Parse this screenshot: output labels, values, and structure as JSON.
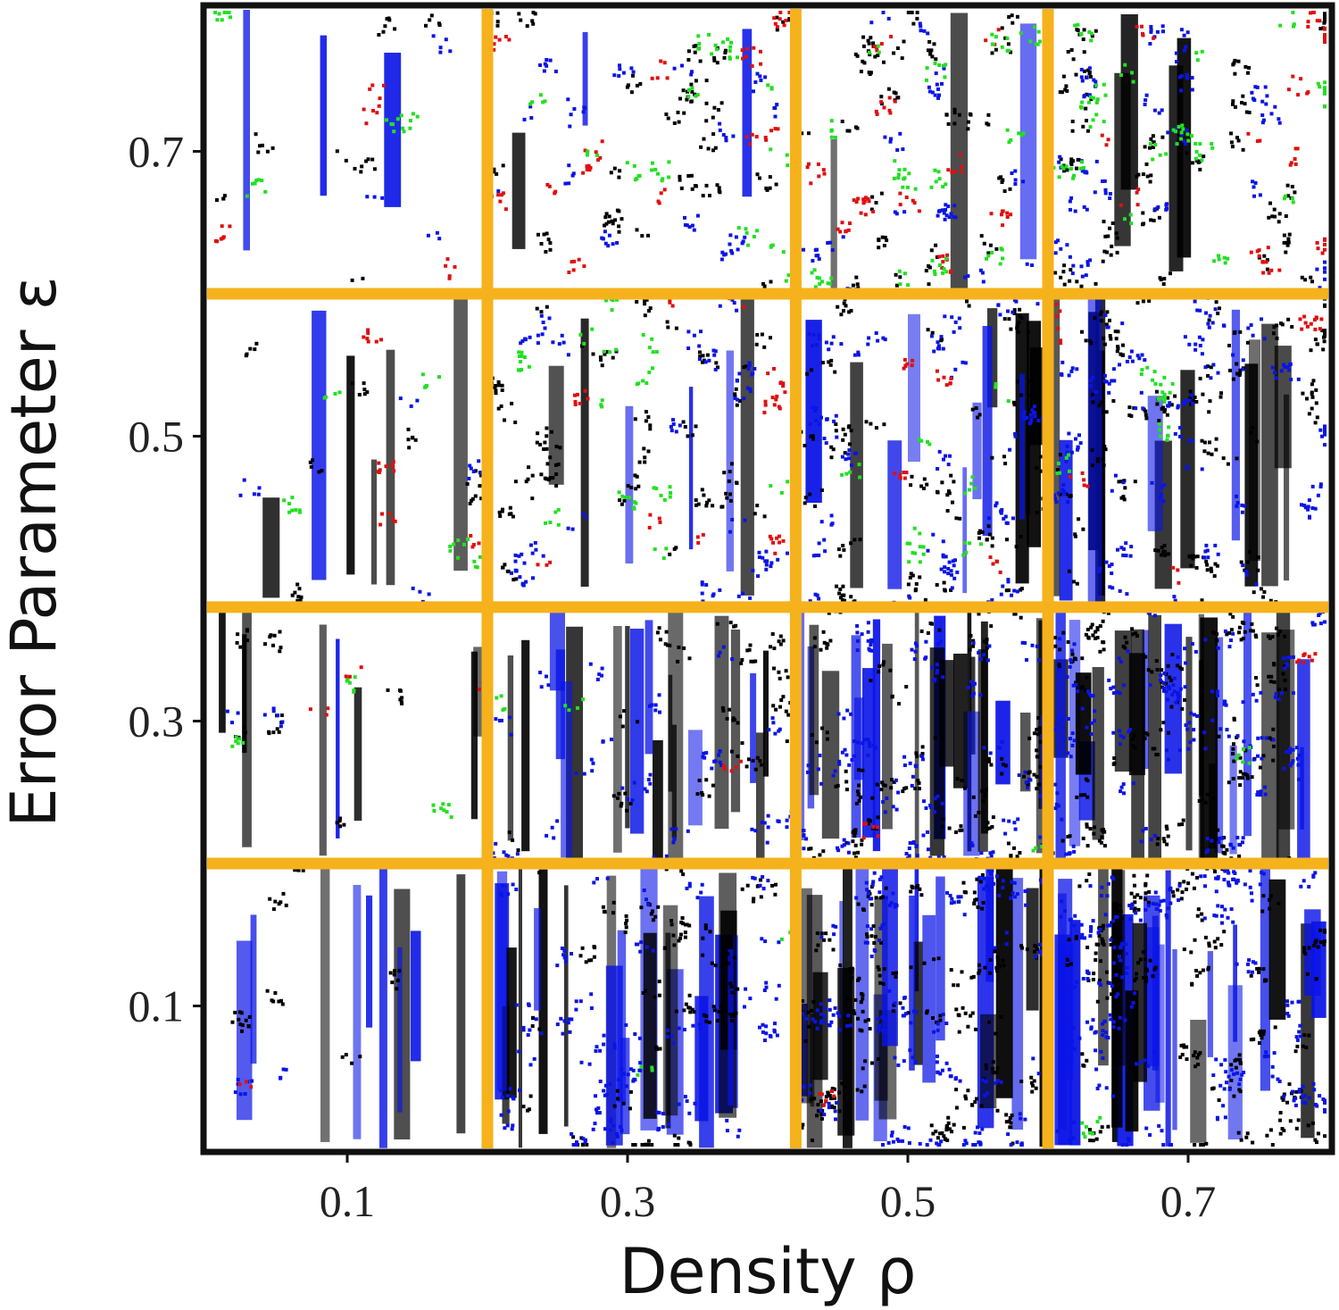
{
  "chart_data": {
    "type": "heatmap",
    "title": "",
    "xlabel": "Density ρ",
    "ylabel": "Error Parameter ε",
    "x_ticks": [
      0.1,
      0.3,
      0.5,
      0.7
    ],
    "y_ticks": [
      0.1,
      0.3,
      0.5,
      0.7
    ],
    "x_tick_labels": [
      "0.1",
      "0.3",
      "0.5",
      "0.7"
    ],
    "y_tick_labels": [
      "0.1",
      "0.3",
      "0.5",
      "0.7"
    ],
    "xlim": [
      0.0,
      0.8
    ],
    "ylim": [
      0.0,
      0.8
    ],
    "grid": true,
    "grid_color": "#f5b21c",
    "x_cell_edges": [
      0.0,
      0.2,
      0.42,
      0.6,
      0.8
    ],
    "y_cell_edges": [
      0.0,
      0.2,
      0.38,
      0.6,
      0.8
    ],
    "colors": {
      "black": "#000000",
      "blue": "#0a14e6",
      "red": "#e00f0f",
      "green": "#22e022",
      "border": "#111111"
    },
    "panels": [
      {
        "row": 0,
        "col": 0,
        "black": 0.06,
        "blue": 0.02,
        "red": 0.01,
        "green": 0.0,
        "stripes": 0.35
      },
      {
        "row": 0,
        "col": 1,
        "black": 0.22,
        "blue": 0.28,
        "red": 0.0,
        "green": 0.02,
        "stripes": 0.85
      },
      {
        "row": 0,
        "col": 2,
        "black": 0.42,
        "blue": 0.38,
        "red": 0.005,
        "green": 0.0,
        "stripes": 0.9
      },
      {
        "row": 0,
        "col": 3,
        "black": 0.4,
        "blue": 0.48,
        "red": 0.0,
        "green": 0.005,
        "stripes": 0.95
      },
      {
        "row": 1,
        "col": 0,
        "black": 0.06,
        "blue": 0.02,
        "red": 0.03,
        "green": 0.03,
        "stripes": 0.3
      },
      {
        "row": 1,
        "col": 1,
        "black": 0.14,
        "blue": 0.18,
        "red": 0.01,
        "green": 0.02,
        "stripes": 0.7
      },
      {
        "row": 1,
        "col": 2,
        "black": 0.36,
        "blue": 0.34,
        "red": 0.01,
        "green": 0.01,
        "stripes": 0.85
      },
      {
        "row": 1,
        "col": 3,
        "black": 0.42,
        "blue": 0.4,
        "red": 0.01,
        "green": 0.01,
        "stripes": 0.9
      },
      {
        "row": 2,
        "col": 0,
        "black": 0.06,
        "blue": 0.03,
        "red": 0.03,
        "green": 0.04,
        "stripes": 0.2
      },
      {
        "row": 2,
        "col": 1,
        "black": 0.22,
        "blue": 0.14,
        "red": 0.08,
        "green": 0.1,
        "stripes": 0.2
      },
      {
        "row": 2,
        "col": 2,
        "black": 0.3,
        "blue": 0.26,
        "red": 0.04,
        "green": 0.06,
        "stripes": 0.45
      },
      {
        "row": 2,
        "col": 3,
        "black": 0.34,
        "blue": 0.3,
        "red": 0.05,
        "green": 0.04,
        "stripes": 0.55
      },
      {
        "row": 3,
        "col": 0,
        "black": 0.06,
        "blue": 0.03,
        "red": 0.04,
        "green": 0.04,
        "stripes": 0.1
      },
      {
        "row": 3,
        "col": 1,
        "black": 0.18,
        "blue": 0.12,
        "red": 0.1,
        "green": 0.1,
        "stripes": 0.1
      },
      {
        "row": 3,
        "col": 2,
        "black": 0.22,
        "blue": 0.14,
        "red": 0.12,
        "green": 0.14,
        "stripes": 0.1
      },
      {
        "row": 3,
        "col": 3,
        "black": 0.24,
        "blue": 0.18,
        "red": 0.1,
        "green": 0.16,
        "stripes": 0.15
      }
    ]
  }
}
